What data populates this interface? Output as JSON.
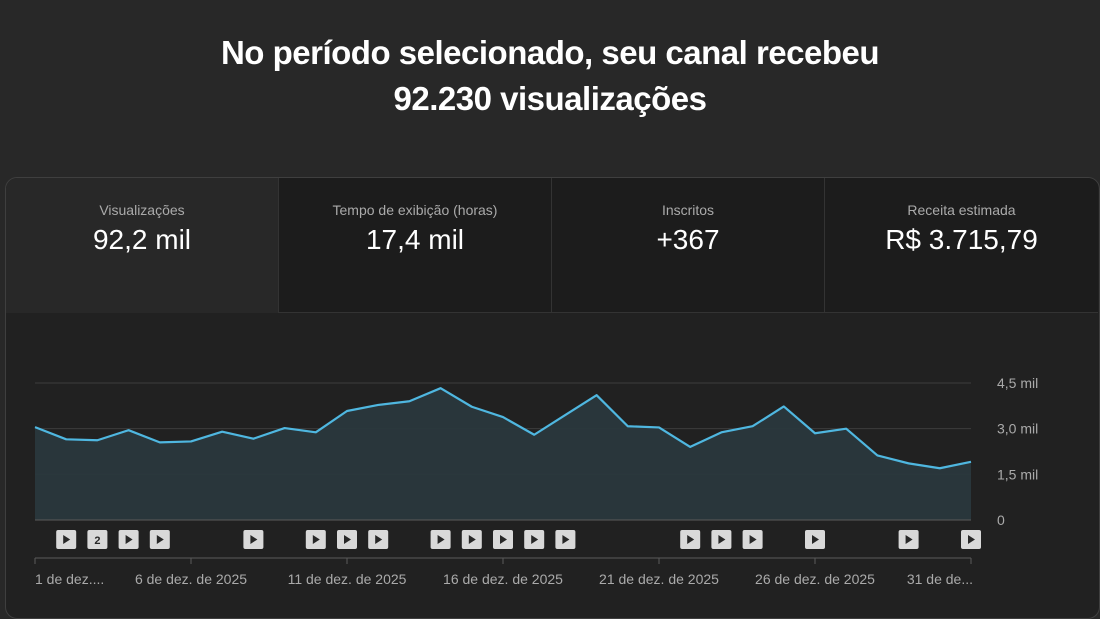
{
  "headline": {
    "line1": "No período selecionado, seu canal recebeu",
    "line2": "92.230 visualizações"
  },
  "tabs": [
    {
      "label": "Visualizações",
      "value": "92,2 mil",
      "active": true
    },
    {
      "label": "Tempo de exibição (horas)",
      "value": "17,4 mil",
      "active": false
    },
    {
      "label": "Inscritos",
      "value": "+367",
      "active": false
    },
    {
      "label": "Receita estimada",
      "value": "R$ 3.715,79",
      "active": false
    }
  ],
  "colors": {
    "line": "#4fb7e0",
    "area": "#2a383d",
    "grid": "#3d3d3d",
    "axis": "#5a5a5a"
  },
  "chart_data": {
    "type": "area",
    "y_tick_labels": [
      "4,5 mil",
      "3,0 mil",
      "1,5 mil",
      "0"
    ],
    "y_ticks": [
      4500,
      3000,
      1500,
      0
    ],
    "ylim": [
      0,
      4500
    ],
    "x_tick_labels": [
      "1 de dez....",
      "6 de dez. de 2025",
      "11 de dez. de 2025",
      "16 de dez. de 2025",
      "21 de dez. de 2025",
      "26 de dez. de 2025",
      "31 de de..."
    ],
    "x_tick_days": [
      1,
      6,
      11,
      16,
      21,
      26,
      31
    ],
    "series": [
      {
        "x": [
          1,
          2,
          3,
          4,
          5,
          6,
          7,
          8,
          9,
          10,
          11,
          12,
          13,
          14,
          15,
          16,
          17,
          18,
          19,
          20,
          21,
          22,
          23,
          24,
          25,
          26,
          27,
          28,
          29,
          30,
          31
        ],
        "values": [
          3050,
          2650,
          2620,
          2950,
          2550,
          2580,
          2900,
          2670,
          3020,
          2880,
          3580,
          3780,
          3900,
          4330,
          3720,
          3380,
          2800,
          3450,
          4100,
          3080,
          3040,
          2400,
          2880,
          3080,
          3730,
          2850,
          3000,
          2120,
          1860,
          1700,
          1910
        ]
      }
    ],
    "video_markers": [
      {
        "x": 2,
        "label": ""
      },
      {
        "x": 3,
        "label": "2"
      },
      {
        "x": 4,
        "label": ""
      },
      {
        "x": 5,
        "label": ""
      },
      {
        "x": 8,
        "label": ""
      },
      {
        "x": 10,
        "label": ""
      },
      {
        "x": 11,
        "label": ""
      },
      {
        "x": 12,
        "label": ""
      },
      {
        "x": 14,
        "label": ""
      },
      {
        "x": 15,
        "label": ""
      },
      {
        "x": 16,
        "label": ""
      },
      {
        "x": 17,
        "label": ""
      },
      {
        "x": 18,
        "label": ""
      },
      {
        "x": 22,
        "label": ""
      },
      {
        "x": 23,
        "label": ""
      },
      {
        "x": 24,
        "label": ""
      },
      {
        "x": 26,
        "label": ""
      },
      {
        "x": 29,
        "label": ""
      },
      {
        "x": 31,
        "label": ""
      }
    ]
  }
}
